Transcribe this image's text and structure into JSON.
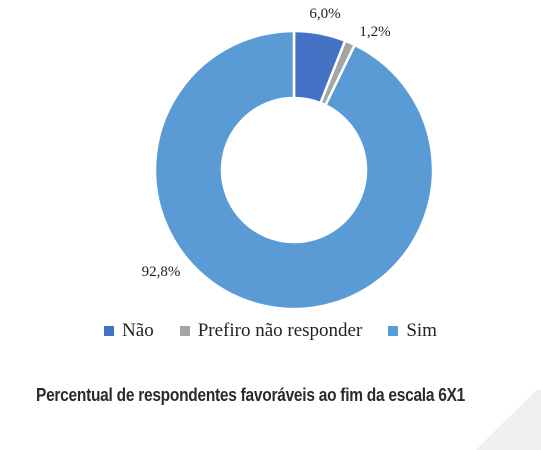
{
  "chart_data": {
    "type": "pie",
    "donut": true,
    "categories": [
      "Não",
      "Prefiro não responder",
      "Sim"
    ],
    "values": [
      6.0,
      1.2,
      92.8
    ],
    "labels": [
      "6,0%",
      "1,2%",
      "92,8%"
    ],
    "colors": [
      "#4472C4",
      "#A5A5A5",
      "#5B9BD5"
    ],
    "title": "",
    "legend_position": "bottom"
  },
  "caption": "Percentual de respondentes favoráveis ao fim da escala 6X1"
}
